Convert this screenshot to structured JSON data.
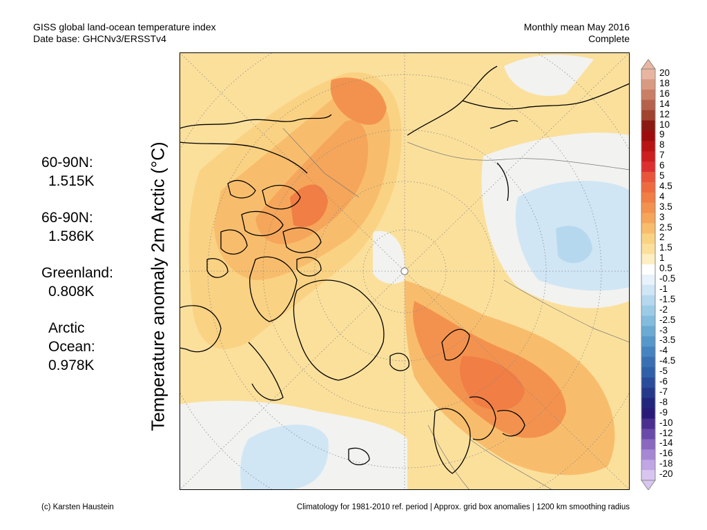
{
  "header": {
    "title_line1": "GISS global land-ocean temperature index",
    "title_line2": "Date base: GHCNv3/ERSSTv4",
    "period_line1": "Monthly mean May 2016",
    "period_line2": "Complete"
  },
  "stats": [
    {
      "label": "60-90N:",
      "value": "1.515K"
    },
    {
      "label": "66-90N:",
      "value": "1.586K"
    },
    {
      "label": "Greenland:",
      "value": "0.808K"
    },
    {
      "label": "Arctic Ocean:",
      "label_lines": [
        "Arctic",
        "Ocean:"
      ],
      "value": "0.978K"
    }
  ],
  "axis_label": "Temperature anomaly 2m Arctic (°C)",
  "footer": {
    "left": "(c) Karsten Haustein",
    "right": "Climatology for 1981-2010 ref. period | Approx. grid box anomalies | 1200 km smoothing radius"
  },
  "colorbar": {
    "labels": [
      "20",
      "18",
      "16",
      "14",
      "12",
      "10",
      "9",
      "8",
      "7",
      "6",
      "5",
      "4.5",
      "4",
      "3.5",
      "3",
      "2.5",
      "2",
      "1.5",
      "1",
      "0.5",
      "-0.5",
      "-1",
      "-1.5",
      "-2",
      "-2.5",
      "-3",
      "-3.5",
      "-4",
      "-4.5",
      "-5",
      "-6",
      "-7",
      "-8",
      "-9",
      "-10",
      "-12",
      "-14",
      "-16",
      "-18",
      "-20"
    ],
    "colors": [
      "#e8b6a0",
      "#d99a82",
      "#c97f66",
      "#b5614b",
      "#a0432f",
      "#8b1a12",
      "#9e0d0d",
      "#b81414",
      "#cc1f1f",
      "#dc3030",
      "#e8553a",
      "#ee6b40",
      "#f07e45",
      "#f3924e",
      "#f5a65a",
      "#f8bd6c",
      "#fad283",
      "#fbe09c",
      "#fdeec3",
      "#ffffff",
      "#e8f2fa",
      "#d0e6f5",
      "#b6d8ee",
      "#9ccbe6",
      "#83bcdd",
      "#6aaad3",
      "#5598c9",
      "#4584bf",
      "#3a70b2",
      "#3060a8",
      "#2a4c9a",
      "#25398b",
      "#22267a",
      "#2a1a78",
      "#4a2f8f",
      "#6a4aa8",
      "#8a68c0",
      "#a687d4",
      "#c0a6e4",
      "#d8c6f0"
    ]
  },
  "colors": {
    "land_outline": "#000000",
    "boundary": "#777777",
    "grid": "#888888"
  }
}
